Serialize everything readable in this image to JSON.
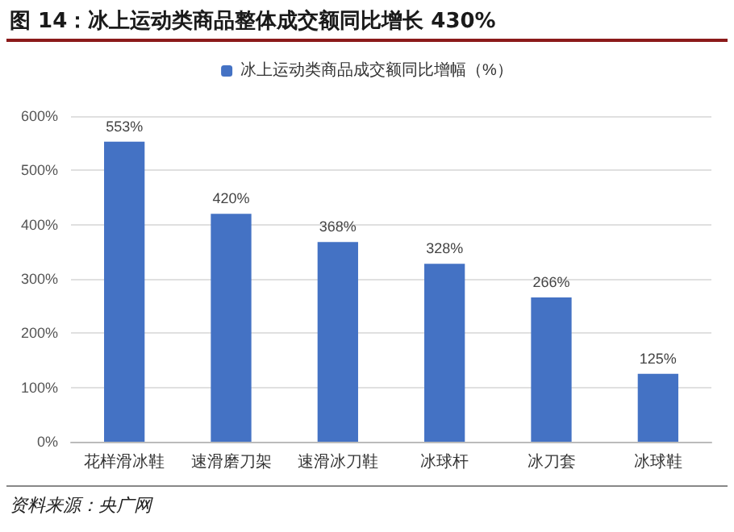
{
  "chart_data": {
    "type": "bar",
    "title": "图 14：冰上运动类商品整体成交额同比增长 430%",
    "categories": [
      "花样滑冰鞋",
      "速滑磨刀架",
      "速滑冰刀鞋",
      "冰球杆",
      "冰刀套",
      "冰球鞋"
    ],
    "series": [
      {
        "name": "冰上运动类商品成交额同比增幅（%）",
        "color": "#4472c4",
        "values": [
          553,
          420,
          368,
          328,
          266,
          125
        ],
        "value_labels": [
          "553%",
          "420%",
          "368%",
          "328%",
          "266%",
          "125%"
        ]
      }
    ],
    "ylim": [
      0,
      600
    ],
    "yticks": [
      {
        "value": 0,
        "label": "0%"
      },
      {
        "value": 100,
        "label": "100%"
      },
      {
        "value": 200,
        "label": "200%"
      },
      {
        "value": 300,
        "label": "300%"
      },
      {
        "value": 400,
        "label": "400%"
      },
      {
        "value": 500,
        "label": "500%"
      },
      {
        "value": 600,
        "label": "600%"
      }
    ],
    "grid": "y",
    "legend": "top",
    "annotations": [
      "资料来源：央广网"
    ]
  }
}
